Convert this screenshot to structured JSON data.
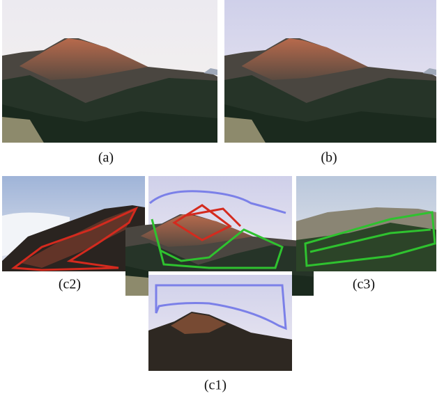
{
  "panels": [
    {
      "label": "(a)"
    },
    {
      "label": "(b)"
    },
    {
      "label": "(c2)"
    },
    {
      "label": "(c3)"
    },
    {
      "label": "(c1)"
    }
  ]
}
